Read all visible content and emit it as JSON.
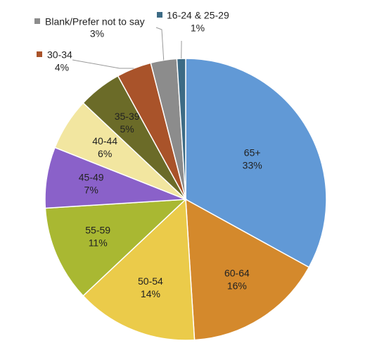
{
  "chart_data": {
    "type": "pie",
    "categories": [
      "65+",
      "60-64",
      "50-54",
      "55-59",
      "45-49",
      "40-44",
      "35-39",
      "30-34",
      "Blank/Prefer not to say",
      "16-24 & 25-29"
    ],
    "values": [
      33,
      16,
      14,
      11,
      7,
      6,
      5,
      4,
      3,
      1
    ],
    "value_labels": [
      "33%",
      "16%",
      "14%",
      "11%",
      "7%",
      "6%",
      "5%",
      "4%",
      "3%",
      "1%"
    ],
    "colors": [
      "#6199d6",
      "#d4892c",
      "#ebcb4a",
      "#a9b832",
      "#8a61c9",
      "#f2e6a0",
      "#6b6b28",
      "#a9532a",
      "#8c8c8c",
      "#3d6b85"
    ]
  }
}
